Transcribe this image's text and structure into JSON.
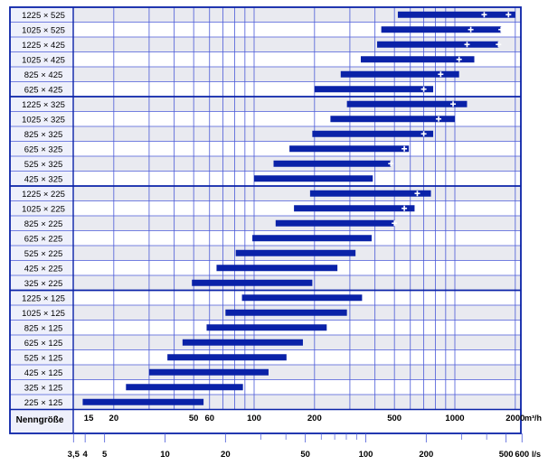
{
  "chart_data": {
    "type": "bar",
    "subtype": "floating-range",
    "row_label_column": "Nenngröße",
    "x_scale": "log",
    "x_range_m3h": [
      12,
      2000
    ],
    "x_ticks_m3h": [
      15,
      20,
      50,
      60,
      100,
      200,
      500,
      1000,
      2000
    ],
    "x_unit_m3h": "m³/h",
    "x_ticks_ls": [
      3.5,
      4,
      5,
      10,
      20,
      50,
      100,
      200,
      500,
      600
    ],
    "x_tick_labels_ls": [
      "3,5",
      "4",
      "5",
      "10",
      "20",
      "50",
      "100",
      "200",
      "500",
      "600"
    ],
    "x_unit_ls": "l/s",
    "grid": true,
    "groups": [
      6,
      6,
      7,
      8
    ],
    "bar_color": "#0a22a8",
    "grid_color": "#4a5ad8",
    "row_shading": [
      "#e9eaf0",
      "#ffffff"
    ],
    "series": [
      {
        "name": "1225 × 525",
        "min": 520,
        "max": 2000,
        "markers": [
          1400,
          1850
        ]
      },
      {
        "name": "1025 × 525",
        "min": 430,
        "max": 1700,
        "markers": [
          1200,
          1700
        ]
      },
      {
        "name": "1225 × 425",
        "min": 410,
        "max": 1650,
        "markers": [
          1150,
          1650
        ]
      },
      {
        "name": "1025 × 425",
        "min": 340,
        "max": 1250,
        "markers": [
          1050
        ]
      },
      {
        "name": "825 × 425",
        "min": 270,
        "max": 1050,
        "markers": [
          850
        ]
      },
      {
        "name": "625 × 425",
        "min": 200,
        "max": 780,
        "markers": [
          700
        ]
      },
      {
        "name": "1225 × 325",
        "min": 290,
        "max": 1150,
        "markers": [
          980
        ]
      },
      {
        "name": "1025 × 325",
        "min": 240,
        "max": 1000,
        "markers": [
          830
        ]
      },
      {
        "name": "825 × 325",
        "min": 195,
        "max": 780,
        "markers": [
          700
        ]
      },
      {
        "name": "625 × 325",
        "min": 150,
        "max": 590,
        "markers": [
          560
        ]
      },
      {
        "name": "525 × 325",
        "min": 125,
        "max": 480,
        "markers": [
          480
        ]
      },
      {
        "name": "425 × 325",
        "min": 100,
        "max": 390,
        "markers": []
      },
      {
        "name": "1225 × 225",
        "min": 190,
        "max": 760,
        "markers": [
          650
        ]
      },
      {
        "name": "1025 × 225",
        "min": 158,
        "max": 630,
        "markers": [
          560
        ]
      },
      {
        "name": "825 × 225",
        "min": 128,
        "max": 500,
        "markers": [
          500
        ]
      },
      {
        "name": "625 × 225",
        "min": 98,
        "max": 385,
        "markers": []
      },
      {
        "name": "525 × 225",
        "min": 81,
        "max": 320,
        "markers": []
      },
      {
        "name": "425 × 225",
        "min": 65,
        "max": 260,
        "markers": []
      },
      {
        "name": "325 × 225",
        "min": 49,
        "max": 195,
        "markers": []
      },
      {
        "name": "1225 × 125",
        "min": 87,
        "max": 345,
        "markers": []
      },
      {
        "name": "1025 × 125",
        "min": 72,
        "max": 290,
        "markers": []
      },
      {
        "name": "825 × 125",
        "min": 58,
        "max": 230,
        "markers": []
      },
      {
        "name": "625 × 125",
        "min": 44,
        "max": 175,
        "markers": []
      },
      {
        "name": "525 × 125",
        "min": 37,
        "max": 145,
        "markers": []
      },
      {
        "name": "425 × 125",
        "min": 30,
        "max": 118,
        "markers": []
      },
      {
        "name": "325 × 125",
        "min": 23,
        "max": 88,
        "markers": []
      },
      {
        "name": "225 × 125",
        "min": 14,
        "max": 56,
        "markers": []
      }
    ]
  }
}
